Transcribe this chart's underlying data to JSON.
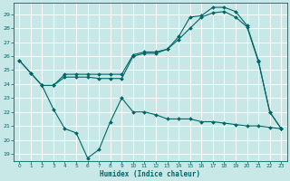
{
  "background_color": "#c8e8e8",
  "grid_color": "#ffffff",
  "line_color": "#006666",
  "xlabel": "Humidex (Indice chaleur)",
  "ylim": [
    18.5,
    29.8
  ],
  "xlim": [
    -0.5,
    23.5
  ],
  "yticks": [
    19,
    20,
    21,
    22,
    23,
    24,
    25,
    26,
    27,
    28,
    29
  ],
  "xticks": [
    0,
    1,
    2,
    3,
    4,
    5,
    6,
    7,
    8,
    9,
    10,
    11,
    12,
    13,
    14,
    15,
    16,
    17,
    18,
    19,
    20,
    21,
    22,
    23
  ],
  "line1_x": [
    0,
    1,
    2,
    3,
    4,
    5,
    6,
    7,
    8,
    9,
    10,
    11,
    12,
    13,
    14,
    15,
    16,
    17,
    18,
    19,
    20,
    21,
    22,
    23
  ],
  "line1_y": [
    25.7,
    24.8,
    23.9,
    23.9,
    24.5,
    24.5,
    24.5,
    24.4,
    24.4,
    24.4,
    26.0,
    26.2,
    26.2,
    26.5,
    27.2,
    28.0,
    28.8,
    29.1,
    29.2,
    28.8,
    28.1,
    25.6,
    22.0,
    20.8
  ],
  "line2_x": [
    0,
    1,
    2,
    3,
    4,
    5,
    6,
    7,
    8,
    9,
    10,
    11,
    12,
    13,
    14,
    15,
    16,
    17,
    18,
    19,
    20,
    21,
    22,
    23
  ],
  "line2_y": [
    25.7,
    24.8,
    23.9,
    23.9,
    24.7,
    24.7,
    24.7,
    24.7,
    24.7,
    24.7,
    26.1,
    26.3,
    26.3,
    26.5,
    27.4,
    28.8,
    28.9,
    29.5,
    29.5,
    29.2,
    28.2,
    25.7,
    22.0,
    20.8
  ],
  "line3_x": [
    2,
    3,
    4,
    5,
    6,
    7,
    8,
    9,
    10,
    11,
    12,
    13,
    14,
    15,
    16,
    17,
    18,
    19,
    20,
    21,
    22,
    23
  ],
  "line3_y": [
    23.9,
    22.2,
    20.8,
    20.5,
    18.7,
    19.3,
    21.3,
    23.0,
    22.0,
    22.0,
    21.8,
    21.5,
    21.5,
    21.5,
    21.3,
    21.3,
    21.2,
    21.1,
    21.0,
    21.0,
    20.9,
    20.8
  ]
}
